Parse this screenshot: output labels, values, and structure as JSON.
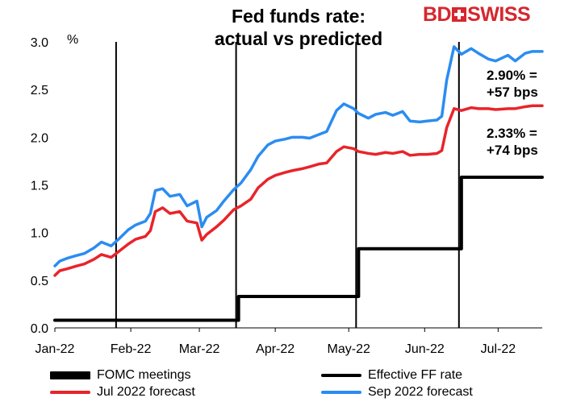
{
  "header": {
    "title_line1": "Fed funds rate:",
    "title_line2": "actual vs predicted",
    "logo_bd": "BD",
    "logo_swiss": "SWISS"
  },
  "annotations": {
    "sep": [
      "2.90% =",
      "+57 bps"
    ],
    "jul": [
      "2.33% =",
      "+74 bps"
    ]
  },
  "colors": {
    "fomc": "#000000",
    "effective": "#000000",
    "jul_forecast": "#e8242a",
    "sep_forecast": "#2b8cf2",
    "brand": "#d7262e"
  },
  "chart_data": {
    "type": "line",
    "title": "Fed funds rate: actual vs predicted",
    "ylabel": "%",
    "ylim": [
      0,
      3
    ],
    "yticks": [
      "0.0",
      "0.5",
      "1.0",
      "1.5",
      "2.0",
      "2.5",
      "3.0"
    ],
    "x_range": [
      "2022-01-01",
      "2022-07-19"
    ],
    "xticks": [
      {
        "date": "2022-01-01",
        "label": "Jan-22"
      },
      {
        "date": "2022-02-01",
        "label": "Feb-22"
      },
      {
        "date": "2022-03-01",
        "label": "Mar-22"
      },
      {
        "date": "2022-04-01",
        "label": "Apr-22"
      },
      {
        "date": "2022-05-01",
        "label": "May-22"
      },
      {
        "date": "2022-06-01",
        "label": "Jun-22"
      },
      {
        "date": "2022-07-01",
        "label": "Jul-22"
      }
    ],
    "fomc_meetings": [
      "2022-01-26",
      "2022-03-16",
      "2022-05-04",
      "2022-06-15"
    ],
    "series": [
      {
        "name": "Effective FF rate",
        "kind": "step",
        "points": [
          {
            "x": "2022-01-01",
            "y": 0.08
          },
          {
            "x": "2022-03-17",
            "y": 0.33
          },
          {
            "x": "2022-05-05",
            "y": 0.83
          },
          {
            "x": "2022-06-16",
            "y": 1.58
          },
          {
            "x": "2022-07-19",
            "y": 1.58
          }
        ]
      },
      {
        "name": "Jul 2022 forecast",
        "points": [
          {
            "x": "2022-01-01",
            "y": 0.55
          },
          {
            "x": "2022-01-03",
            "y": 0.6
          },
          {
            "x": "2022-01-06",
            "y": 0.62
          },
          {
            "x": "2022-01-10",
            "y": 0.65
          },
          {
            "x": "2022-01-13",
            "y": 0.67
          },
          {
            "x": "2022-01-17",
            "y": 0.72
          },
          {
            "x": "2022-01-20",
            "y": 0.77
          },
          {
            "x": "2022-01-24",
            "y": 0.74
          },
          {
            "x": "2022-01-27",
            "y": 0.8
          },
          {
            "x": "2022-01-31",
            "y": 0.88
          },
          {
            "x": "2022-02-03",
            "y": 0.93
          },
          {
            "x": "2022-02-07",
            "y": 0.96
          },
          {
            "x": "2022-02-09",
            "y": 1.02
          },
          {
            "x": "2022-02-11",
            "y": 1.22
          },
          {
            "x": "2022-02-14",
            "y": 1.26
          },
          {
            "x": "2022-02-17",
            "y": 1.2
          },
          {
            "x": "2022-02-21",
            "y": 1.22
          },
          {
            "x": "2022-02-24",
            "y": 1.12
          },
          {
            "x": "2022-02-28",
            "y": 1.1
          },
          {
            "x": "2022-03-02",
            "y": 0.92
          },
          {
            "x": "2022-03-04",
            "y": 0.98
          },
          {
            "x": "2022-03-08",
            "y": 1.06
          },
          {
            "x": "2022-03-11",
            "y": 1.13
          },
          {
            "x": "2022-03-15",
            "y": 1.24
          },
          {
            "x": "2022-03-18",
            "y": 1.28
          },
          {
            "x": "2022-03-22",
            "y": 1.35
          },
          {
            "x": "2022-03-25",
            "y": 1.47
          },
          {
            "x": "2022-03-29",
            "y": 1.56
          },
          {
            "x": "2022-04-01",
            "y": 1.6
          },
          {
            "x": "2022-04-05",
            "y": 1.63
          },
          {
            "x": "2022-04-08",
            "y": 1.65
          },
          {
            "x": "2022-04-12",
            "y": 1.67
          },
          {
            "x": "2022-04-15",
            "y": 1.69
          },
          {
            "x": "2022-04-19",
            "y": 1.72
          },
          {
            "x": "2022-04-22",
            "y": 1.73
          },
          {
            "x": "2022-04-26",
            "y": 1.85
          },
          {
            "x": "2022-04-29",
            "y": 1.9
          },
          {
            "x": "2022-05-03",
            "y": 1.88
          },
          {
            "x": "2022-05-05",
            "y": 1.85
          },
          {
            "x": "2022-05-09",
            "y": 1.83
          },
          {
            "x": "2022-05-12",
            "y": 1.82
          },
          {
            "x": "2022-05-16",
            "y": 1.84
          },
          {
            "x": "2022-05-19",
            "y": 1.83
          },
          {
            "x": "2022-05-23",
            "y": 1.85
          },
          {
            "x": "2022-05-26",
            "y": 1.81
          },
          {
            "x": "2022-05-30",
            "y": 1.82
          },
          {
            "x": "2022-06-02",
            "y": 1.82
          },
          {
            "x": "2022-06-06",
            "y": 1.83
          },
          {
            "x": "2022-06-08",
            "y": 1.86
          },
          {
            "x": "2022-06-10",
            "y": 2.1
          },
          {
            "x": "2022-06-13",
            "y": 2.3
          },
          {
            "x": "2022-06-16",
            "y": 2.28
          },
          {
            "x": "2022-06-20",
            "y": 2.31
          },
          {
            "x": "2022-06-23",
            "y": 2.3
          },
          {
            "x": "2022-06-27",
            "y": 2.3
          },
          {
            "x": "2022-06-30",
            "y": 2.29
          },
          {
            "x": "2022-07-05",
            "y": 2.3
          },
          {
            "x": "2022-07-08",
            "y": 2.3
          },
          {
            "x": "2022-07-12",
            "y": 2.32
          },
          {
            "x": "2022-07-15",
            "y": 2.33
          },
          {
            "x": "2022-07-19",
            "y": 2.33
          }
        ]
      },
      {
        "name": "Sep 2022 forecast",
        "points": [
          {
            "x": "2022-01-01",
            "y": 0.65
          },
          {
            "x": "2022-01-03",
            "y": 0.7
          },
          {
            "x": "2022-01-06",
            "y": 0.73
          },
          {
            "x": "2022-01-10",
            "y": 0.76
          },
          {
            "x": "2022-01-13",
            "y": 0.78
          },
          {
            "x": "2022-01-17",
            "y": 0.84
          },
          {
            "x": "2022-01-20",
            "y": 0.9
          },
          {
            "x": "2022-01-24",
            "y": 0.86
          },
          {
            "x": "2022-01-27",
            "y": 0.93
          },
          {
            "x": "2022-01-31",
            "y": 1.03
          },
          {
            "x": "2022-02-03",
            "y": 1.08
          },
          {
            "x": "2022-02-07",
            "y": 1.12
          },
          {
            "x": "2022-02-09",
            "y": 1.2
          },
          {
            "x": "2022-02-11",
            "y": 1.44
          },
          {
            "x": "2022-02-14",
            "y": 1.46
          },
          {
            "x": "2022-02-17",
            "y": 1.38
          },
          {
            "x": "2022-02-21",
            "y": 1.4
          },
          {
            "x": "2022-02-24",
            "y": 1.28
          },
          {
            "x": "2022-02-28",
            "y": 1.33
          },
          {
            "x": "2022-03-02",
            "y": 1.06
          },
          {
            "x": "2022-03-04",
            "y": 1.16
          },
          {
            "x": "2022-03-08",
            "y": 1.23
          },
          {
            "x": "2022-03-11",
            "y": 1.33
          },
          {
            "x": "2022-03-15",
            "y": 1.45
          },
          {
            "x": "2022-03-18",
            "y": 1.52
          },
          {
            "x": "2022-03-22",
            "y": 1.66
          },
          {
            "x": "2022-03-25",
            "y": 1.8
          },
          {
            "x": "2022-03-29",
            "y": 1.92
          },
          {
            "x": "2022-04-01",
            "y": 1.96
          },
          {
            "x": "2022-04-05",
            "y": 1.98
          },
          {
            "x": "2022-04-08",
            "y": 2.0
          },
          {
            "x": "2022-04-12",
            "y": 2.0
          },
          {
            "x": "2022-04-15",
            "y": 1.99
          },
          {
            "x": "2022-04-19",
            "y": 2.03
          },
          {
            "x": "2022-04-22",
            "y": 2.06
          },
          {
            "x": "2022-04-26",
            "y": 2.28
          },
          {
            "x": "2022-04-29",
            "y": 2.35
          },
          {
            "x": "2022-05-03",
            "y": 2.3
          },
          {
            "x": "2022-05-05",
            "y": 2.25
          },
          {
            "x": "2022-05-09",
            "y": 2.2
          },
          {
            "x": "2022-05-12",
            "y": 2.24
          },
          {
            "x": "2022-05-16",
            "y": 2.26
          },
          {
            "x": "2022-05-19",
            "y": 2.23
          },
          {
            "x": "2022-05-23",
            "y": 2.27
          },
          {
            "x": "2022-05-26",
            "y": 2.17
          },
          {
            "x": "2022-05-30",
            "y": 2.16
          },
          {
            "x": "2022-06-02",
            "y": 2.17
          },
          {
            "x": "2022-06-06",
            "y": 2.18
          },
          {
            "x": "2022-06-08",
            "y": 2.22
          },
          {
            "x": "2022-06-10",
            "y": 2.6
          },
          {
            "x": "2022-06-13",
            "y": 2.95
          },
          {
            "x": "2022-06-16",
            "y": 2.87
          },
          {
            "x": "2022-06-20",
            "y": 2.93
          },
          {
            "x": "2022-06-23",
            "y": 2.88
          },
          {
            "x": "2022-06-27",
            "y": 2.82
          },
          {
            "x": "2022-06-30",
            "y": 2.8
          },
          {
            "x": "2022-07-05",
            "y": 2.86
          },
          {
            "x": "2022-07-08",
            "y": 2.8
          },
          {
            "x": "2022-07-12",
            "y": 2.88
          },
          {
            "x": "2022-07-15",
            "y": 2.9
          },
          {
            "x": "2022-07-19",
            "y": 2.9
          }
        ]
      }
    ],
    "legend": {
      "position": "bottom",
      "items": [
        {
          "name": "FOMC meetings",
          "color": "#000000"
        },
        {
          "name": "Effective FF rate",
          "color": "#000000"
        },
        {
          "name": "Jul 2022 forecast",
          "color": "#e8242a"
        },
        {
          "name": "Sep 2022 forecast",
          "color": "#2b8cf2"
        }
      ]
    }
  }
}
